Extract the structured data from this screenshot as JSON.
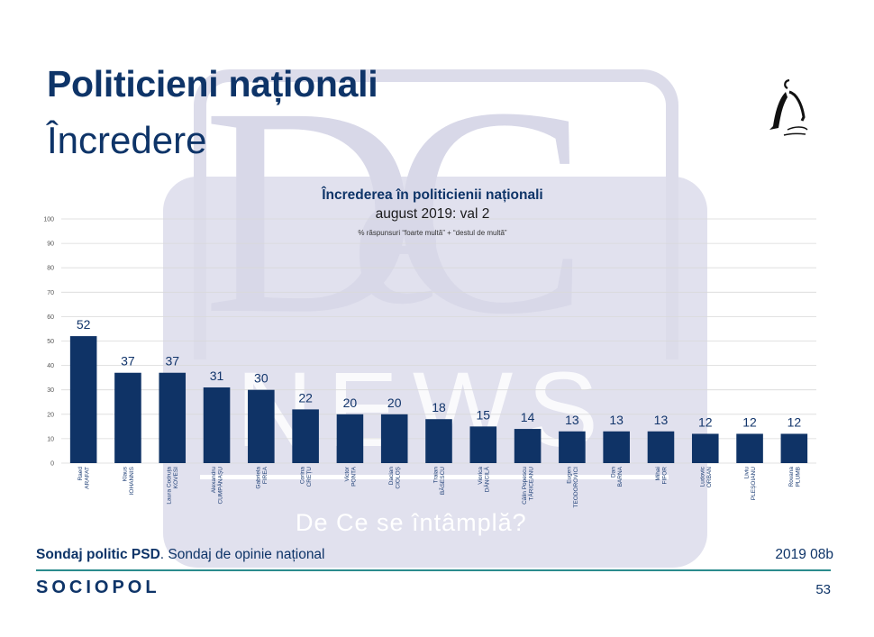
{
  "slide": {
    "title": "Politicieni naționali",
    "subtitle": "Încredere",
    "logo_icon": "thinker-figure-icon"
  },
  "watermark": {
    "letters": "DC",
    "small_letter": "e",
    "word": "NEWS",
    "tagline": "De Ce se întâmplă?"
  },
  "chart_data": {
    "type": "bar",
    "title": "Încrederea în politicienii naționali",
    "subtitle": "august 2019: val 2",
    "note": "% răspunsuri “foarte multă” + “destul de multă”",
    "xlabel": "",
    "ylabel": "",
    "ylim": [
      0,
      100
    ],
    "yticks": [
      0,
      10,
      20,
      30,
      40,
      50,
      60,
      70,
      80,
      90,
      100
    ],
    "grid": true,
    "legend": "none",
    "bar_color": "#0f3366",
    "categories": [
      [
        "Raed",
        "ARAFAT"
      ],
      [
        "Klaus",
        "IOHANNIS"
      ],
      [
        "Laura Codruța",
        "KOVESI"
      ],
      [
        "Alexandru",
        "CUMPĂNAȘU"
      ],
      [
        "Gabriela",
        "FIREA"
      ],
      [
        "Corina",
        "CREȚU"
      ],
      [
        "Victor",
        "PONTA"
      ],
      [
        "Dacian",
        "CIOLOȘ"
      ],
      [
        "Traian",
        "BĂSESCU"
      ],
      [
        "Viorica",
        "DĂNCILĂ"
      ],
      [
        "Călin Popescu",
        "TĂRICEANU"
      ],
      [
        "Eugen",
        "TEODOROVICI"
      ],
      [
        "Dan",
        "BARNA"
      ],
      [
        "Mihai",
        "FIFOR"
      ],
      [
        "Ludovic",
        "ORBAN"
      ],
      [
        "Liviu",
        "PLEȘOIANU"
      ],
      [
        "Rovana",
        "PLUMB"
      ]
    ],
    "values": [
      52,
      37,
      37,
      31,
      30,
      22,
      20,
      20,
      18,
      15,
      14,
      13,
      13,
      13,
      12,
      12,
      12
    ]
  },
  "footer": {
    "source_bold": "Sondaj politic PSD",
    "source_rest": ". Sondaj de opinie național",
    "code": "2019 08b",
    "brand": "SOCIOPOL",
    "page": "53"
  }
}
